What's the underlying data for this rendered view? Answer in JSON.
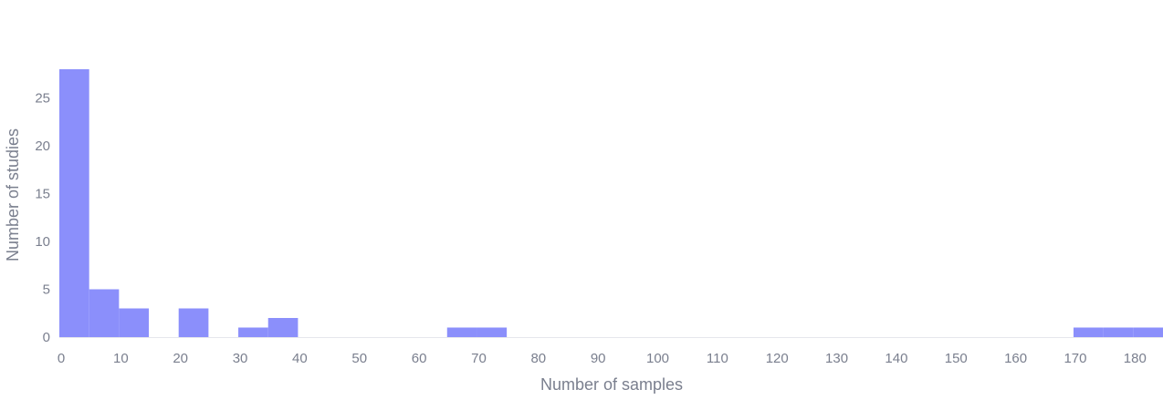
{
  "chart_data": {
    "type": "bar",
    "title": "",
    "xlabel": "Number of samples",
    "ylabel": "Number of studies",
    "bin_width": 5,
    "bins": [
      {
        "x0": 0,
        "x1": 5,
        "count": 28
      },
      {
        "x0": 5,
        "x1": 10,
        "count": 5
      },
      {
        "x0": 10,
        "x1": 15,
        "count": 3
      },
      {
        "x0": 15,
        "x1": 20,
        "count": 0
      },
      {
        "x0": 20,
        "x1": 25,
        "count": 3
      },
      {
        "x0": 25,
        "x1": 30,
        "count": 0
      },
      {
        "x0": 30,
        "x1": 35,
        "count": 1
      },
      {
        "x0": 35,
        "x1": 40,
        "count": 2
      },
      {
        "x0": 65,
        "x1": 70,
        "count": 1
      },
      {
        "x0": 70,
        "x1": 75,
        "count": 1
      },
      {
        "x0": 170,
        "x1": 175,
        "count": 1
      },
      {
        "x0": 175,
        "x1": 180,
        "count": 1
      },
      {
        "x0": 180,
        "x1": 185,
        "count": 1
      }
    ],
    "xlim": [
      0,
      185
    ],
    "ylim": [
      0,
      28
    ],
    "x_ticks": [
      "0",
      "10",
      "20",
      "30",
      "40",
      "50",
      "60",
      "70",
      "80",
      "90",
      "100",
      "110",
      "120",
      "130",
      "140",
      "150",
      "160",
      "170",
      "180"
    ],
    "y_ticks": [
      "0",
      "5",
      "10",
      "15",
      "20",
      "25"
    ],
    "grid": false,
    "legend": "none",
    "bar_color": "#8b8ffb"
  }
}
